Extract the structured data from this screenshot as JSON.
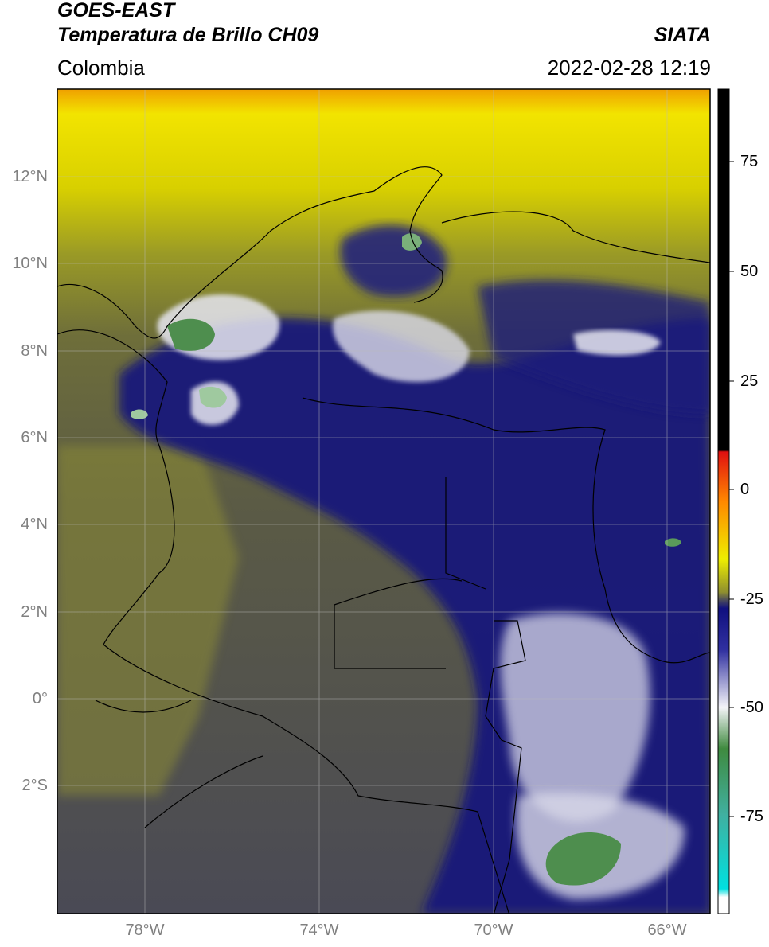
{
  "header": {
    "title_line1": "GOES-EAST",
    "title_line2": "Temperatura de Brillo CH09",
    "region": "Colombia",
    "source": "SIATA",
    "timestamp": "2022-02-28 12:19"
  },
  "map": {
    "lat_labels": [
      "12°N",
      "10°N",
      "8°N",
      "6°N",
      "4°N",
      "2°N",
      "0°",
      "2°S"
    ],
    "lon_labels": [
      "78°W",
      "74°W",
      "70°W",
      "66°W"
    ]
  },
  "colorbar": {
    "tick_labels": [
      "75",
      "50",
      "25",
      "0",
      "-25",
      "-50",
      "-75"
    ],
    "colors": {
      "black": "#000000",
      "red": "#e01010",
      "orange": "#ff8800",
      "yellow": "#eeee00",
      "olive": "#8f8f2e",
      "gray": "#4a4a5c",
      "navy": "#10107f",
      "white": "#f4f4f8",
      "green": "#3f8a3f",
      "cyan": "#00e0e0"
    }
  },
  "colors": {
    "cloud_top_green": "#6aa26a",
    "cold_white": "#e6e6f0",
    "border_line": "#000000",
    "grid_line": "#bbbbbb"
  }
}
